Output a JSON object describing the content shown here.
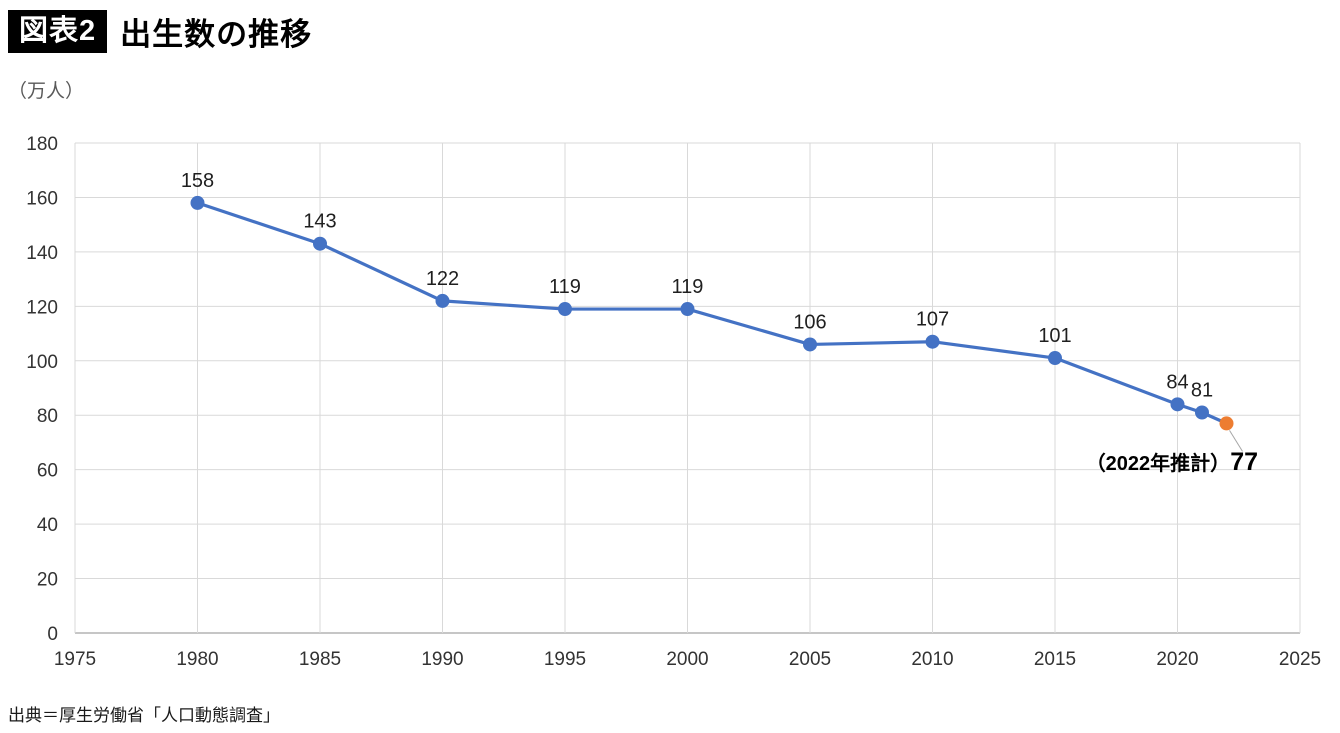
{
  "header": {
    "badge": "図表2",
    "title": "出生数の推移"
  },
  "source": "出典＝厚生労働省「人口動態調査」",
  "chart_data": {
    "type": "line",
    "title": "出生数の推移",
    "unit_label": "（万人）",
    "x": [
      1980,
      1985,
      1990,
      1995,
      2000,
      2005,
      2010,
      2015,
      2020,
      2021,
      2022
    ],
    "values": [
      158,
      143,
      122,
      119,
      119,
      106,
      107,
      101,
      84,
      81,
      77
    ],
    "point_labels": [
      "158",
      "143",
      "122",
      "119",
      "119",
      "106",
      "107",
      "101",
      "84",
      "81",
      ""
    ],
    "estimate_index": 10,
    "annotation": {
      "prefix": "（2022年推計）",
      "value": "77"
    },
    "xlim": [
      1975,
      2025
    ],
    "ylim": [
      0,
      180
    ],
    "x_ticks": [
      1975,
      1980,
      1985,
      1990,
      1995,
      2000,
      2005,
      2010,
      2015,
      2020,
      2025
    ],
    "y_ticks": [
      0,
      20,
      40,
      60,
      80,
      100,
      120,
      140,
      160,
      180
    ],
    "grid": true,
    "legend": "none",
    "line_color": "#4472C4",
    "estimate_color": "#ED7D31",
    "gridline_color": "#d9d9d9",
    "axis_line_color": "#8c8c8c",
    "tick_label_color": "#333333",
    "data_label_color": "#1f1f1f"
  }
}
